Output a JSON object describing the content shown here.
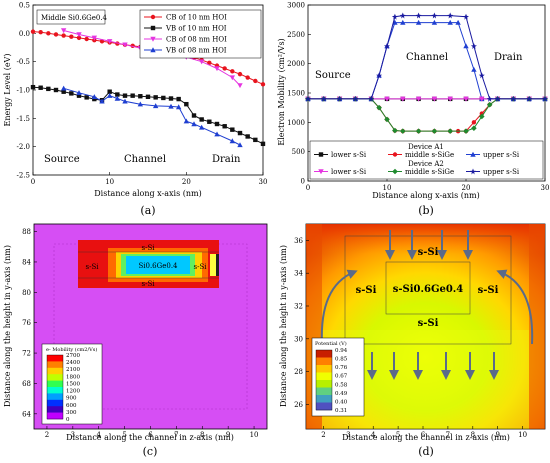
{
  "captions": [
    "(a)",
    "(b)",
    "(c)",
    "(d)"
  ],
  "chart_data": [
    {
      "type": "line",
      "panel": "a",
      "title": "Middle Si0.6Ge0.4",
      "xlabel": "Distance along x-axis (nm)",
      "ylabel": "Energy Level (eV)",
      "xlim": [
        0,
        30
      ],
      "ylim": [
        -2.5,
        0.5
      ],
      "xticks": [
        "0",
        "10",
        "20",
        "30"
      ],
      "yticks": [
        "0.5",
        "0.0",
        "-0.5",
        "-1.0",
        "-1.5",
        "-2.0",
        "-2.5"
      ],
      "region_labels": [
        "Source",
        "Channel",
        "Drain"
      ],
      "series": [
        {
          "name": "CB of 10 nm HOI",
          "color": "#e8141e",
          "marker": "circle",
          "x": [
            0,
            1,
            2,
            3,
            4,
            5,
            6,
            7,
            8,
            9,
            10,
            11,
            12,
            13,
            14,
            15,
            16,
            17,
            18,
            19,
            20,
            21,
            22,
            23,
            24,
            25,
            26,
            27,
            28,
            29,
            30
          ],
          "y": [
            0.03,
            0.02,
            0.0,
            -0.02,
            -0.04,
            -0.06,
            -0.08,
            -0.1,
            -0.12,
            -0.14,
            -0.16,
            -0.18,
            -0.2,
            -0.22,
            -0.24,
            -0.26,
            -0.28,
            -0.3,
            -0.33,
            -0.36,
            -0.39,
            -0.43,
            -0.47,
            -0.52,
            -0.57,
            -0.62,
            -0.67,
            -0.72,
            -0.78,
            -0.84,
            -0.9
          ]
        },
        {
          "name": "VB of 10 nm HOI",
          "color": "#111111",
          "marker": "square",
          "x": [
            0,
            1,
            2,
            3,
            4,
            5,
            6,
            7,
            8,
            9,
            10,
            11,
            12,
            13,
            14,
            15,
            16,
            17,
            18,
            19,
            20,
            21,
            22,
            23,
            24,
            25,
            26,
            27,
            28,
            29,
            30
          ],
          "y": [
            -0.95,
            -0.96,
            -0.98,
            -1.0,
            -1.03,
            -1.06,
            -1.1,
            -1.13,
            -1.16,
            -1.18,
            -1.03,
            -1.08,
            -1.1,
            -1.1,
            -1.11,
            -1.12,
            -1.13,
            -1.14,
            -1.15,
            -1.16,
            -1.25,
            -1.45,
            -1.52,
            -1.56,
            -1.6,
            -1.64,
            -1.7,
            -1.76,
            -1.82,
            -1.88,
            -1.95
          ]
        },
        {
          "name": "CB of 08 nm HOI",
          "color": "#e535e0",
          "marker": "triangle-down",
          "x": [
            4,
            6,
            8,
            10,
            12,
            14,
            16,
            18,
            20,
            22,
            24,
            26,
            27
          ],
          "y": [
            0.05,
            -0.02,
            -0.08,
            -0.14,
            -0.2,
            -0.26,
            -0.3,
            -0.36,
            -0.42,
            -0.5,
            -0.62,
            -0.78,
            -0.92
          ]
        },
        {
          "name": "VB of 08 nm HOI",
          "color": "#1f3fd1",
          "marker": "triangle-up",
          "x": [
            4,
            6,
            8,
            9,
            10,
            11,
            12,
            14,
            16,
            18,
            19,
            20,
            21,
            22,
            24,
            26,
            27
          ],
          "y": [
            -0.97,
            -1.05,
            -1.12,
            -1.2,
            -1.1,
            -1.15,
            -1.2,
            -1.25,
            -1.28,
            -1.29,
            -1.3,
            -1.55,
            -1.6,
            -1.66,
            -1.78,
            -1.9,
            -1.97
          ]
        }
      ]
    },
    {
      "type": "line",
      "panel": "b",
      "xlabel": "Distance along x-axis (nm)",
      "ylabel": "Electron Mobility (cm²/Vs)",
      "xlim": [
        0,
        30
      ],
      "ylim": [
        0,
        3000
      ],
      "xticks": [
        "0",
        "10",
        "20",
        "30"
      ],
      "yticks": [
        "3000",
        "2500",
        "2000",
        "1500",
        "1000",
        "500",
        "0"
      ],
      "region_labels": [
        "Source",
        "Channel",
        "Drain"
      ],
      "legend_groups": [
        "Device A1",
        "Device A2"
      ],
      "series": [
        {
          "name": "lower s-Si",
          "group": "Device A1",
          "color": "#111111",
          "marker": "square",
          "x": [
            0,
            2,
            4,
            6,
            8,
            10,
            12,
            14,
            16,
            18,
            20,
            22,
            24,
            26,
            28,
            30
          ],
          "y": [
            1400,
            1400,
            1400,
            1400,
            1400,
            1400,
            1400,
            1400,
            1400,
            1400,
            1400,
            1400,
            1400,
            1400,
            1400,
            1400
          ]
        },
        {
          "name": "middle s-SiGe",
          "group": "Device A1",
          "color": "#e8141e",
          "marker": "circle",
          "x": [
            0,
            2,
            4,
            6,
            8,
            9,
            10,
            11,
            12,
            14,
            16,
            18,
            19,
            20,
            21,
            22,
            23,
            24,
            26,
            28,
            30
          ],
          "y": [
            1400,
            1400,
            1400,
            1400,
            1400,
            1250,
            1050,
            860,
            850,
            850,
            850,
            850,
            850,
            850,
            1000,
            1150,
            1300,
            1400,
            1400,
            1400,
            1400
          ]
        },
        {
          "name": "upper s-Si",
          "group": "Device A1",
          "color": "#1f3fd1",
          "marker": "triangle-up",
          "x": [
            0,
            2,
            4,
            6,
            8,
            9,
            10,
            11,
            12,
            14,
            16,
            18,
            19,
            20,
            21,
            22,
            24,
            26,
            28,
            30
          ],
          "y": [
            1400,
            1400,
            1400,
            1400,
            1400,
            1800,
            2300,
            2700,
            2700,
            2700,
            2700,
            2700,
            2700,
            2300,
            1900,
            1400,
            1400,
            1400,
            1400,
            1400
          ]
        },
        {
          "name": "lower s-Si",
          "group": "Device A2",
          "color": "#e535e0",
          "marker": "triangle-down",
          "x": [
            0,
            2,
            4,
            6,
            8,
            10,
            12,
            14,
            16,
            18,
            20,
            22,
            24,
            26,
            28,
            30
          ],
          "y": [
            1400,
            1400,
            1400,
            1400,
            1400,
            1400,
            1400,
            1400,
            1400,
            1400,
            1400,
            1400,
            1400,
            1400,
            1400,
            1400
          ]
        },
        {
          "name": "middle s-SiGe",
          "group": "Device A2",
          "color": "#1f8a2e",
          "marker": "diamond",
          "x": [
            0,
            2,
            4,
            6,
            8,
            9,
            10,
            11,
            12,
            14,
            16,
            18,
            20,
            21,
            22,
            23,
            24,
            26,
            28,
            30
          ],
          "y": [
            1400,
            1400,
            1400,
            1400,
            1400,
            1250,
            1050,
            860,
            850,
            850,
            850,
            850,
            850,
            900,
            1100,
            1300,
            1400,
            1400,
            1400,
            1400
          ]
        },
        {
          "name": "upper s-Si",
          "group": "Device A2",
          "color": "#1a1aa0",
          "marker": "star",
          "x": [
            0,
            2,
            4,
            6,
            8,
            9,
            10,
            11,
            12,
            14,
            16,
            18,
            20,
            21,
            22,
            23,
            24,
            26,
            28,
            30
          ],
          "y": [
            1400,
            1400,
            1400,
            1400,
            1400,
            1800,
            2300,
            2800,
            2820,
            2820,
            2820,
            2820,
            2800,
            2300,
            1800,
            1400,
            1400,
            1400,
            1400,
            1400
          ]
        }
      ]
    },
    {
      "type": "heatmap",
      "panel": "c",
      "xlabel": "Distance along the channel in z-axis (nm)",
      "ylabel": "Distance along the height in y-axis (nm)",
      "xlim": [
        1.5,
        10.5
      ],
      "ylim": [
        62,
        89
      ],
      "xticks": [
        "2",
        "3",
        "4",
        "5",
        "6",
        "7",
        "8",
        "9",
        "10"
      ],
      "yticks": [
        "88",
        "84",
        "80",
        "76",
        "72",
        "68",
        "64"
      ],
      "region_labels": [
        "s-Si",
        "s-Si",
        "s-Si",
        "s-Si"
      ],
      "center_label": "Si0.6Ge0.4",
      "colorbar": {
        "title": "e- Mobility (cm2/Vs)",
        "ticks": [
          "2700",
          "2400",
          "2100",
          "1800",
          "1500",
          "1200",
          "900",
          "600",
          "300",
          "0"
        ]
      }
    },
    {
      "type": "heatmap",
      "panel": "d",
      "xlabel": "Distance along the channel in z-axis (nm)",
      "ylabel": "Distance along the height in y-axis (nm)",
      "xlim": [
        1.3,
        10.9
      ],
      "ylim": [
        24.5,
        37
      ],
      "xticks": [
        "2",
        "3",
        "4",
        "5",
        "6",
        "7",
        "8",
        "9",
        "10"
      ],
      "yticks": [
        "36",
        "34",
        "32",
        "30",
        "28",
        "26"
      ],
      "region_labels": [
        "s-Si",
        "s-Si",
        "s-Si",
        "s-Si"
      ],
      "center_label": "s-Si0.6Ge0.4",
      "colorbar": {
        "title": "Potential (V)",
        "ticks": [
          "0.94",
          "0.85",
          "0.76",
          "0.67",
          "0.58",
          "0.49",
          "0.40",
          "0.31"
        ]
      }
    }
  ],
  "colors": {
    "mobility_scale": [
      "#ff0000",
      "#ff8000",
      "#ffd000",
      "#c0ff00",
      "#30ff50",
      "#00ffd0",
      "#00a0ff",
      "#0030ff",
      "#4000c0",
      "#c000ff"
    ],
    "potential_scale": [
      "#c81e00",
      "#ff7f00",
      "#ffc800",
      "#f0ff00",
      "#b8f000",
      "#60d080",
      "#40a0c0",
      "#5050c0"
    ],
    "background_c": "#d64ef4"
  }
}
